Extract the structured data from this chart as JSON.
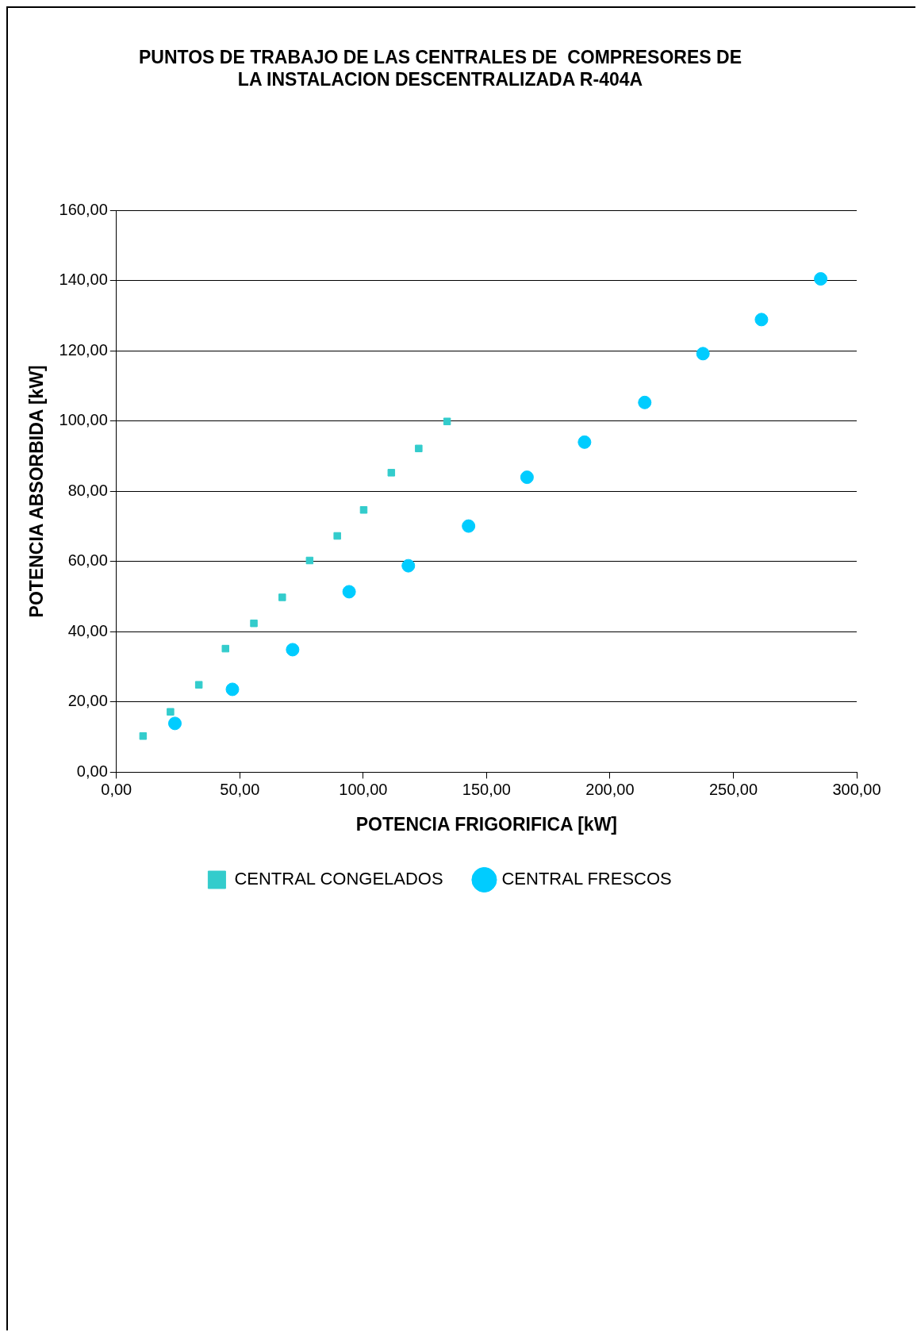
{
  "chart_data": {
    "type": "scatter",
    "title": "PUNTOS DE TRABAJO DE LAS CENTRALES DE  COMPRESORES DE\nLA INSTALACION DESCENTRALIZADA R-404A",
    "xlabel": "POTENCIA FRIGORIFICA [kW]",
    "ylabel": "POTENCIA ABSORBIDA [kW]",
    "xlim": [
      0,
      300
    ],
    "xticks": [
      {
        "value": 0,
        "label": "0,00"
      },
      {
        "value": 50,
        "label": "50,00"
      },
      {
        "value": 100,
        "label": "100,00"
      },
      {
        "value": 150,
        "label": "150,00"
      },
      {
        "value": 200,
        "label": "200,00"
      },
      {
        "value": 250,
        "label": "250,00"
      },
      {
        "value": 300,
        "label": "300,00"
      }
    ],
    "ylim": [
      0,
      160
    ],
    "yticks": [
      {
        "value": 0,
        "label": "0,00"
      },
      {
        "value": 20,
        "label": "20,00"
      },
      {
        "value": 40,
        "label": "40,00"
      },
      {
        "value": 60,
        "label": "60,00"
      },
      {
        "value": 80,
        "label": "80,00"
      },
      {
        "value": 100,
        "label": "100,00"
      },
      {
        "value": 120,
        "label": "120,00"
      },
      {
        "value": 140,
        "label": "140,00"
      },
      {
        "value": 160,
        "label": "160,00"
      }
    ],
    "grid": "y",
    "legend": "bottom",
    "series": [
      {
        "name": "CENTRAL CONGELADOS",
        "color": "#33cccc",
        "marker": "square",
        "x": [
          10.8,
          21.9,
          33.4,
          44.2,
          55.7,
          67.2,
          78.3,
          89.5,
          100.2,
          111.4,
          122.5,
          134.0
        ],
        "values": [
          10.3,
          17.2,
          24.9,
          35.2,
          42.4,
          49.8,
          60.3,
          67.3,
          74.7,
          85.3,
          92.2,
          99.9
        ]
      },
      {
        "name": "CENTRAL FRESCOS",
        "color": "#00ccff",
        "marker": "circle",
        "x": [
          23.7,
          47.0,
          71.4,
          94.3,
          118.3,
          142.7,
          166.4,
          189.7,
          214.1,
          237.7,
          261.4,
          285.4
        ],
        "values": [
          13.9,
          23.6,
          34.9,
          51.4,
          58.8,
          70.1,
          84.0,
          94.0,
          105.3,
          119.2,
          128.9,
          140.5
        ]
      }
    ]
  }
}
